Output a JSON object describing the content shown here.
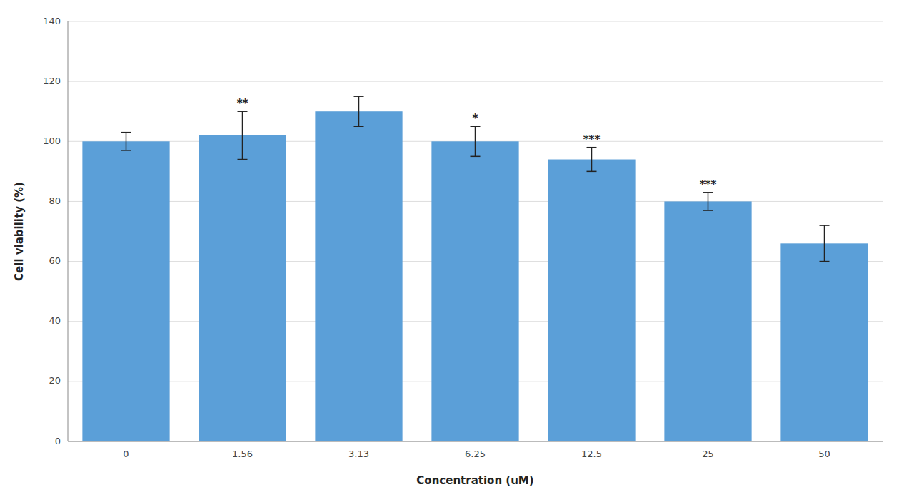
{
  "chart_data": {
    "type": "bar",
    "xlabel": "Concentration (uM)",
    "ylabel": "Cell viability (%)",
    "categories": [
      "0",
      "1.56",
      "3.13",
      "6.25",
      "12.5",
      "25",
      "50"
    ],
    "values": [
      100,
      102,
      110,
      100,
      94,
      80,
      66
    ],
    "errors": [
      3,
      8,
      5,
      5,
      4,
      3,
      6
    ],
    "annotations": [
      null,
      "**",
      null,
      "*",
      "***",
      "***",
      null
    ],
    "color": "#5B9FD8",
    "ylim": [
      0,
      140
    ],
    "yticks": [
      0,
      20,
      40,
      60,
      80,
      100,
      120,
      140
    ],
    "grid": true
  }
}
